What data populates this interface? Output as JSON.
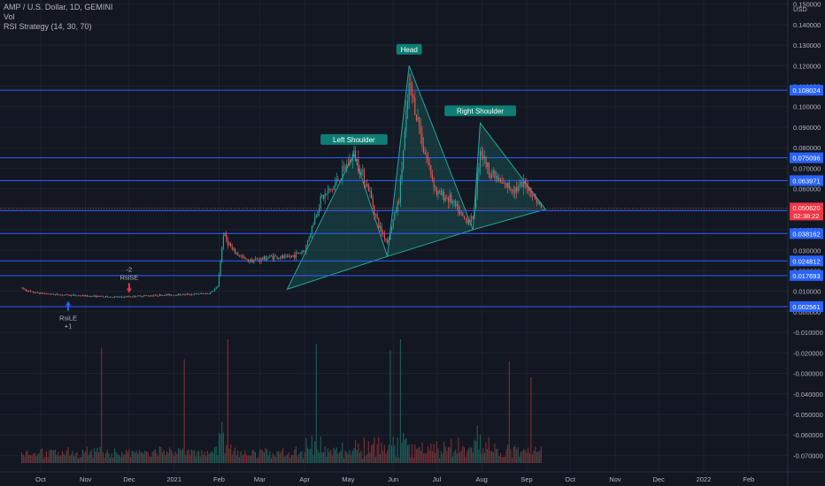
{
  "legend": {
    "symbol_line": "AMP / U.S. Dollar, 1D, GEMINI",
    "vol_line": "Vol",
    "strategy_line": "RSI Strategy (14, 30, 70)"
  },
  "colors": {
    "background": "#131722",
    "up": "#26a69a",
    "down": "#ef5350",
    "hline": "#2962ff",
    "pattern_fill": "#1b5e5a",
    "pattern_stroke": "#26a69a",
    "axis_text": "#b2b5be",
    "price_tag_red": "#f23645"
  },
  "chart_data": {
    "type": "candlestick",
    "title": "AMP / U.S. Dollar, 1D, GEMINI",
    "y_range": [
      -0.078,
      0.152
    ],
    "y_ticks": [
      "0.150000",
      "0.140000",
      "0.130000",
      "0.120000",
      "0.110000",
      "0.100000",
      "0.090000",
      "0.080000",
      "0.070000",
      "0.060000",
      "0.050000",
      "0.040000",
      "0.030000",
      "0.020000",
      "0.010000",
      "0.000000",
      "-0.010000",
      "-0.020000",
      "-0.030000",
      "-0.040000",
      "-0.050000",
      "-0.060000",
      "-0.070000"
    ],
    "y_tick_values": [
      0.15,
      0.14,
      0.13,
      0.12,
      0.11,
      0.1,
      0.09,
      0.08,
      0.07,
      0.06,
      0.05,
      0.04,
      0.03,
      0.02,
      0.01,
      0.0,
      -0.01,
      -0.02,
      -0.03,
      -0.04,
      -0.05,
      -0.06,
      -0.07
    ],
    "y_axis_unit": "USD",
    "x_ticks": [
      "Oct",
      "Nov",
      "Dec",
      "2021",
      "Feb",
      "Mar",
      "Apr",
      "May",
      "Jun",
      "Jul",
      "Aug",
      "Sep",
      "Oct",
      "Nov",
      "Dec",
      "2022",
      "Feb"
    ],
    "x_tick_dates": [
      "2020-10-01",
      "2020-11-01",
      "2020-12-01",
      "2021-01-01",
      "2021-02-01",
      "2021-03-01",
      "2021-04-01",
      "2021-05-01",
      "2021-06-01",
      "2021-07-01",
      "2021-08-01",
      "2021-09-01",
      "2021-10-01",
      "2021-11-01",
      "2021-12-01",
      "2022-01-01",
      "2022-02-01"
    ],
    "date_range": [
      "2020-09-03",
      "2022-02-28"
    ],
    "price_path": [
      [
        "2020-09-18",
        0.0115
      ],
      [
        "2020-09-25",
        0.0095
      ],
      [
        "2020-10-10",
        0.0085
      ],
      [
        "2020-10-25",
        0.008
      ],
      [
        "2020-11-10",
        0.0075
      ],
      [
        "2020-11-25",
        0.0072
      ],
      [
        "2020-12-10",
        0.0078
      ],
      [
        "2020-12-25",
        0.0082
      ],
      [
        "2021-01-10",
        0.0085
      ],
      [
        "2021-01-25",
        0.009
      ],
      [
        "2021-01-31",
        0.012
      ],
      [
        "2021-02-04",
        0.038
      ],
      [
        "2021-02-10",
        0.03
      ],
      [
        "2021-02-20",
        0.025
      ],
      [
        "2021-03-01",
        0.0255
      ],
      [
        "2021-03-10",
        0.027
      ],
      [
        "2021-03-20",
        0.0262
      ],
      [
        "2021-04-01",
        0.03
      ],
      [
        "2021-04-12",
        0.055
      ],
      [
        "2021-04-20",
        0.06
      ],
      [
        "2021-05-05",
        0.077
      ],
      [
        "2021-05-15",
        0.06
      ],
      [
        "2021-05-22",
        0.042
      ],
      [
        "2021-05-28",
        0.034
      ],
      [
        "2021-06-05",
        0.055
      ],
      [
        "2021-06-12",
        0.11
      ],
      [
        "2021-06-16",
        0.1
      ],
      [
        "2021-06-22",
        0.08
      ],
      [
        "2021-07-01",
        0.058
      ],
      [
        "2021-07-10",
        0.055
      ],
      [
        "2021-07-20",
        0.045
      ],
      [
        "2021-07-26",
        0.045
      ],
      [
        "2021-07-31",
        0.08
      ],
      [
        "2021-08-05",
        0.07
      ],
      [
        "2021-08-15",
        0.062
      ],
      [
        "2021-08-25",
        0.06
      ],
      [
        "2021-09-01",
        0.062
      ],
      [
        "2021-09-08",
        0.054
      ],
      [
        "2021-09-11",
        0.0506
      ]
    ],
    "horizontal_lines": [
      {
        "value": 0.108024,
        "label": "0.108024"
      },
      {
        "value": 0.075096,
        "label": "0.075096"
      },
      {
        "value": 0.063971,
        "label": "0.063971"
      },
      {
        "value": 0.049333,
        "label": "0.049333"
      },
      {
        "value": 0.038162,
        "label": "0.038162"
      },
      {
        "value": 0.024812,
        "label": "0.024812"
      },
      {
        "value": 0.017693,
        "label": "0.017693"
      },
      {
        "value": 0.002561,
        "label": "0.002561"
      }
    ],
    "current_price": {
      "value": 0.05062,
      "label": "0.050620",
      "countdown": "02:38:22"
    },
    "patterns": [
      {
        "name": "Left Shoulder",
        "points": [
          [
            "2021-03-20",
            0.011
          ],
          [
            "2021-05-05",
            0.077
          ],
          [
            "2021-05-28",
            0.027
          ]
        ]
      },
      {
        "name": "Head",
        "points": [
          [
            "2021-05-28",
            0.027
          ],
          [
            "2021-06-12",
            0.12
          ],
          [
            "2021-07-26",
            0.04
          ]
        ]
      },
      {
        "name": "Right Shoulder",
        "points": [
          [
            "2021-07-26",
            0.04
          ],
          [
            "2021-07-31",
            0.092
          ],
          [
            "2021-09-14",
            0.05
          ]
        ]
      }
    ],
    "pattern_labels": [
      {
        "text": "Left Shoulder",
        "date": "2021-05-05",
        "value": 0.084
      },
      {
        "text": "Head",
        "date": "2021-06-12",
        "value": 0.128
      },
      {
        "text": "Right Shoulder",
        "date": "2021-07-31",
        "value": 0.098
      }
    ],
    "signals": [
      {
        "type": "long",
        "date": "2020-10-20",
        "value": 0.007,
        "label": "RsiLE",
        "qty": "+1"
      },
      {
        "type": "short",
        "date": "2020-12-01",
        "value": 0.0075,
        "label": "RsiSE",
        "qty": "-2"
      }
    ],
    "volume_panel": {
      "scale_high": "-0.020000",
      "scale_low": "-0.070000"
    }
  }
}
